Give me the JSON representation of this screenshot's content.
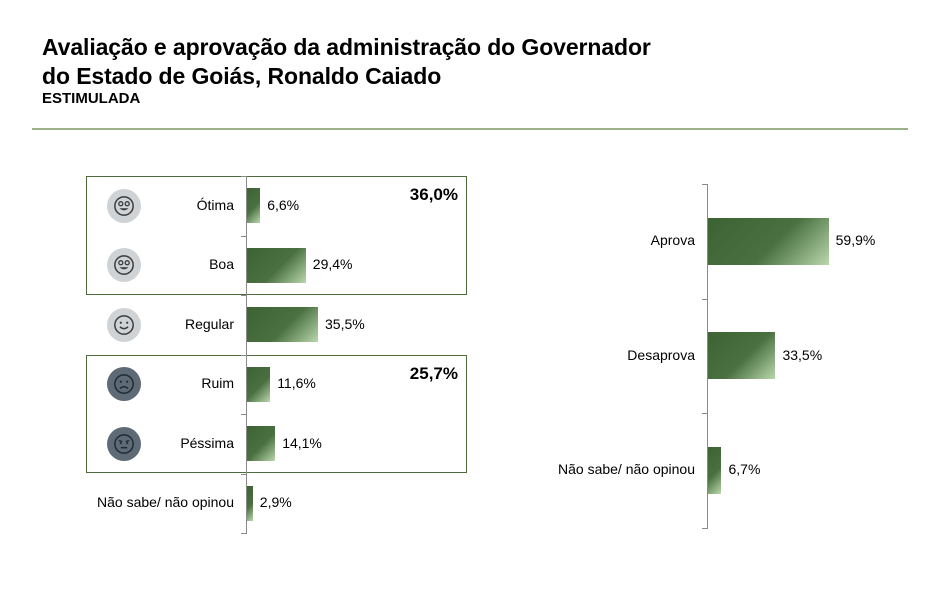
{
  "header": {
    "title_line1": "Avaliação e aprovação da administração do Governador",
    "title_line2": "do Estado de Goiás, Ronaldo Caiado",
    "subtitle": "ESTIMULADA"
  },
  "groups": {
    "positive_total": "36,0%",
    "negative_total": "25,7%"
  },
  "colors": {
    "bar_dark": "#3d6335",
    "bar_light": "#b9d8ad",
    "face_light": "#d0d3d6",
    "face_dark": "#5e6b77",
    "box_border": "#4e6b3b"
  },
  "chart_data": [
    {
      "type": "bar",
      "orientation": "horizontal",
      "categories": [
        "Ótima",
        "Boa",
        "Regular",
        "Ruim",
        "Péssima",
        "Não sabe/ não opinou"
      ],
      "values": [
        6.6,
        29.4,
        35.5,
        11.6,
        14.1,
        2.9
      ],
      "value_labels": [
        "6,6%",
        "29,4%",
        "35,5%",
        "11,6%",
        "14,1%",
        "2,9%"
      ],
      "icons": [
        "grin-face-icon",
        "grin-face-icon",
        "smile-face-icon",
        "frown-face-icon",
        "neutral-face-icon",
        ""
      ],
      "xlim": [
        0,
        70
      ],
      "grid": false
    },
    {
      "type": "bar",
      "orientation": "horizontal",
      "categories": [
        "Aprova",
        "Desaprova",
        "Não sabe/ não opinou"
      ],
      "values": [
        59.9,
        33.5,
        6.7
      ],
      "value_labels": [
        "59,9%",
        "33,5%",
        "6,7%"
      ],
      "xlim": [
        0,
        70
      ],
      "grid": false
    }
  ]
}
